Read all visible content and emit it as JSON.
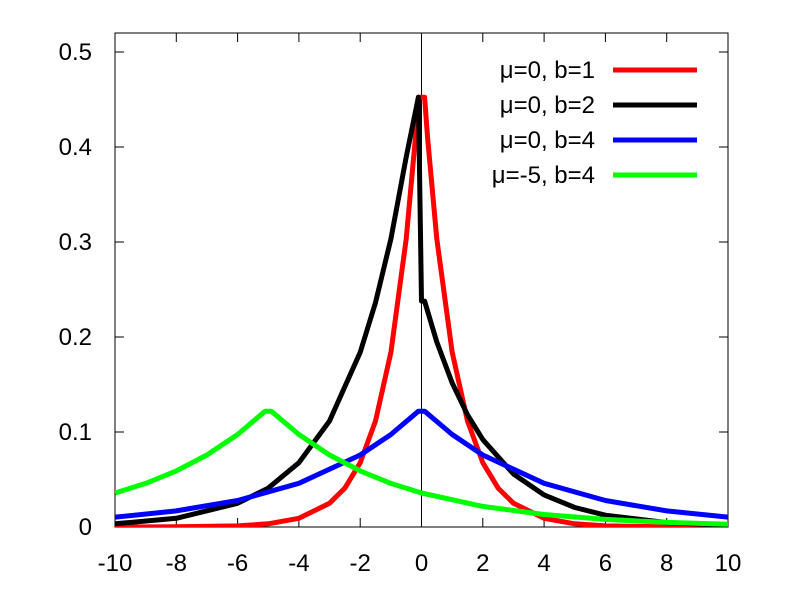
{
  "chart_data": {
    "type": "line",
    "title": "",
    "xlabel": "",
    "ylabel": "",
    "xlim": [
      -10,
      10
    ],
    "ylim": [
      0,
      0.52
    ],
    "x_ticks": [
      {
        "value": -10,
        "label": "-10"
      },
      {
        "value": -8,
        "label": "-8"
      },
      {
        "value": -6,
        "label": "-6"
      },
      {
        "value": -4,
        "label": "-4"
      },
      {
        "value": -2,
        "label": "-2"
      },
      {
        "value": 0,
        "label": "0"
      },
      {
        "value": 2,
        "label": "2"
      },
      {
        "value": 4,
        "label": "4"
      },
      {
        "value": 6,
        "label": "6"
      },
      {
        "value": 8,
        "label": "8"
      },
      {
        "value": 10,
        "label": "10"
      }
    ],
    "y_ticks": [
      {
        "value": 0,
        "label": "0"
      },
      {
        "value": 0.1,
        "label": "0.1"
      },
      {
        "value": 0.2,
        "label": "0.2"
      },
      {
        "value": 0.3,
        "label": "0.3"
      },
      {
        "value": 0.4,
        "label": "0.4"
      },
      {
        "value": 0.5,
        "label": "0.5"
      }
    ],
    "grid": false,
    "zero_line": "vertical line at x=0",
    "legend_position": "top-right",
    "series": [
      {
        "name": "μ=0, b=1",
        "color": "#ff0000",
        "x": [
          -10,
          -8,
          -6,
          -5,
          -4,
          -3,
          -2.5,
          -2,
          -1.5,
          -1,
          -0.5,
          -0.2,
          -0.1,
          0,
          0.1,
          0.2,
          0.5,
          1,
          1.5,
          2,
          2.5,
          3,
          4,
          5,
          6,
          8,
          10
        ],
        "values": [
          0.0,
          0.0002,
          0.0012,
          0.0034,
          0.0092,
          0.0249,
          0.041,
          0.0677,
          0.1116,
          0.1839,
          0.3033,
          0.4094,
          0.4524,
          0.4524,
          0.4524,
          0.4094,
          0.3033,
          0.1839,
          0.1116,
          0.0677,
          0.041,
          0.0249,
          0.0092,
          0.0034,
          0.0012,
          0.0002,
          0.0
        ]
      },
      {
        "name": "μ=0, b=2",
        "color": "#000000",
        "x": [
          -10,
          -8,
          -6,
          -5,
          -4,
          -3,
          -2,
          -1.5,
          -1,
          -0.5,
          -0.1,
          0,
          0.1,
          0.5,
          1,
          1.5,
          2,
          3,
          4,
          5,
          6,
          8,
          10
        ],
        "values": [
          0.0034,
          0.0092,
          0.0249,
          0.041,
          0.0677,
          0.1116,
          0.1839,
          0.2362,
          0.3033,
          0.3894,
          0.4524,
          0.2378,
          0.2378,
          0.1947,
          0.1516,
          0.1181,
          0.092,
          0.0558,
          0.0338,
          0.0205,
          0.0124,
          0.0046,
          0.0017
        ]
      },
      {
        "name": "μ=0, b=4",
        "color": "#0000ff",
        "x": [
          -10,
          -8,
          -6,
          -4,
          -2,
          -1,
          -0.1,
          0,
          0.1,
          1,
          2,
          4,
          6,
          8,
          10
        ],
        "values": [
          0.0103,
          0.0169,
          0.0279,
          0.046,
          0.0758,
          0.0974,
          0.1219,
          0.1219,
          0.1219,
          0.0974,
          0.0758,
          0.046,
          0.0279,
          0.0169,
          0.0103
        ]
      },
      {
        "name": "μ=-5, b=4",
        "color": "#00ff00",
        "x": [
          -10,
          -9,
          -8,
          -7,
          -6,
          -5.1,
          -5,
          -4.9,
          -4,
          -3,
          -2,
          -1,
          0,
          2,
          4,
          6,
          8,
          10
        ],
        "values": [
          0.0358,
          0.0459,
          0.059,
          0.0758,
          0.0974,
          0.1219,
          0.1219,
          0.1219,
          0.0974,
          0.0758,
          0.059,
          0.0459,
          0.0358,
          0.0217,
          0.0132,
          0.008,
          0.0048,
          0.0029
        ]
      }
    ]
  }
}
